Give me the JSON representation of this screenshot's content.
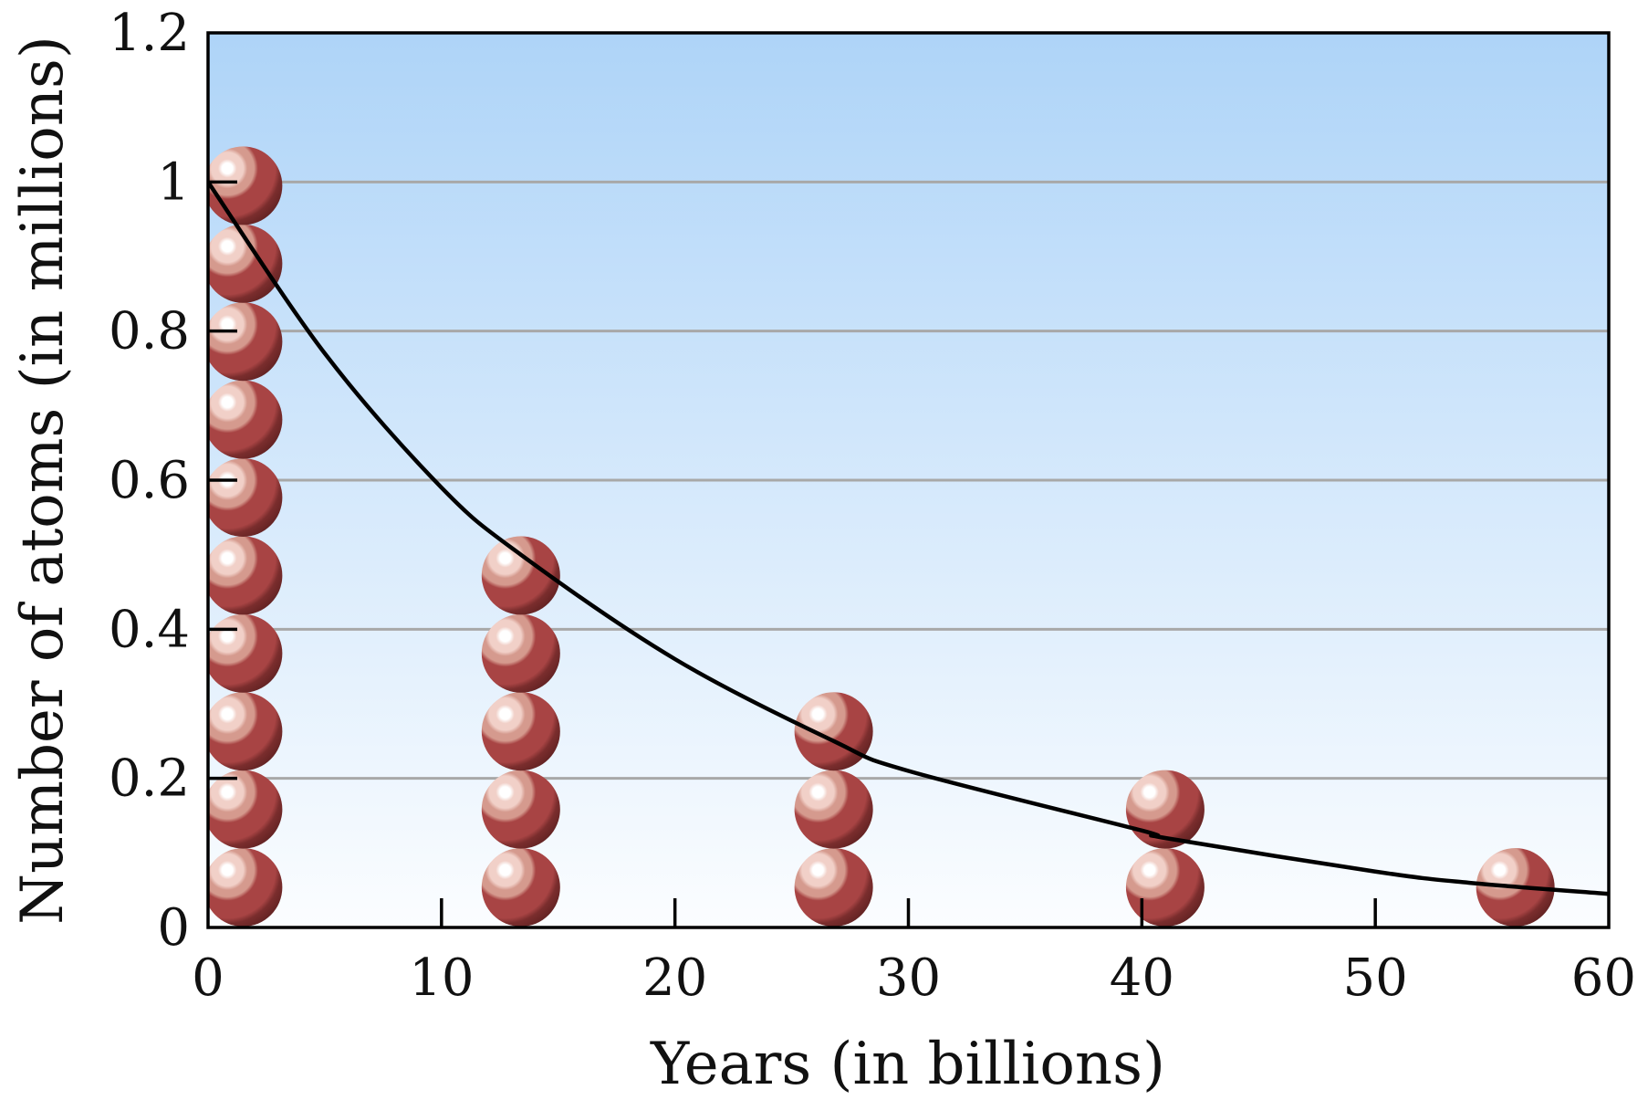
{
  "chart_data": {
    "type": "line",
    "title": "",
    "xlabel": "Years (in billions)",
    "ylabel": "Number of atoms (in millions)",
    "xlim": [
      0,
      60
    ],
    "ylim": [
      0,
      1.2
    ],
    "x_ticks": [
      "0",
      "10",
      "20",
      "30",
      "40",
      "50",
      "60"
    ],
    "y_ticks": [
      "0",
      "0.2",
      "0.4",
      "0.6",
      "0.8",
      "1",
      "1.2"
    ],
    "grid": "horizontal",
    "decay_curve": {
      "x": [
        0,
        5,
        10,
        13.4,
        20,
        26.8,
        30,
        40,
        41,
        50,
        54,
        60
      ],
      "y": [
        1.0,
        0.77,
        0.59,
        0.5,
        0.36,
        0.25,
        0.21,
        0.13,
        0.12,
        0.075,
        0.06,
        0.045
      ]
    },
    "atom_stacks": [
      {
        "x": 1.5,
        "count": 10
      },
      {
        "x": 13.4,
        "count": 5
      },
      {
        "x": 26.8,
        "count": 3
      },
      {
        "x": 41.0,
        "count": 2
      },
      {
        "x": 56.0,
        "count": 1
      }
    ],
    "colors": {
      "background_top": "#aed4f8",
      "background_bottom": "#fbfdff",
      "grid": "#a8a8a8",
      "curve": "#000000",
      "atom_dark": "#5a1f1f",
      "atom_mid": "#a84444",
      "atom_light": "#f1d0c8"
    }
  }
}
